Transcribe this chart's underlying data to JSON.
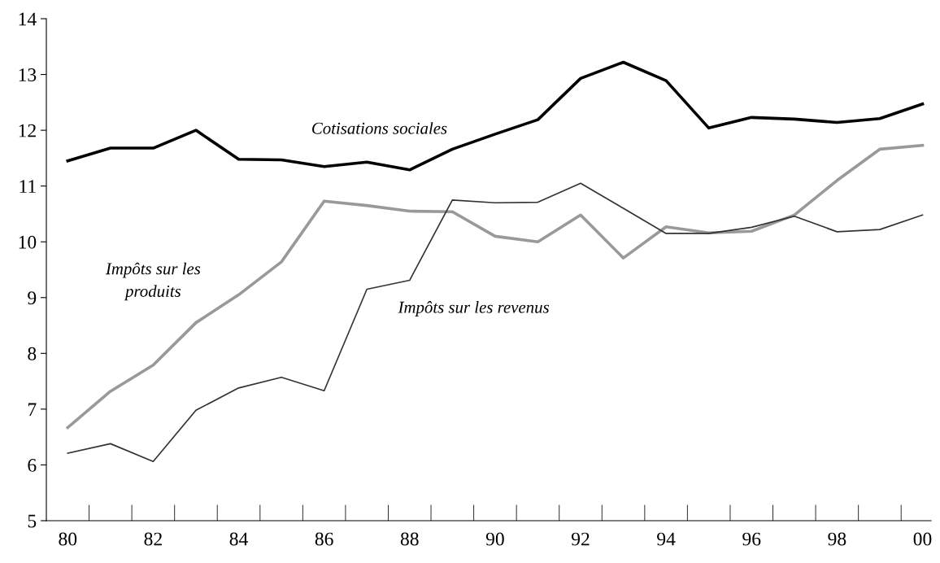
{
  "chart_data": {
    "type": "line",
    "categories": [
      "80",
      null,
      "82",
      null,
      "84",
      null,
      "86",
      null,
      "88",
      null,
      "90",
      null,
      "92",
      null,
      "94",
      null,
      "96",
      null,
      "98",
      null,
      "00"
    ],
    "series": [
      {
        "name": "Cotisations sociales",
        "color": "#000000",
        "values": [
          11.45,
          11.68,
          11.68,
          12.0,
          11.48,
          11.47,
          11.35,
          11.43,
          11.29,
          11.66,
          11.93,
          12.19,
          12.93,
          13.22,
          12.89,
          12.04,
          12.23,
          12.2,
          12.14,
          12.21,
          12.47
        ]
      },
      {
        "name": "Impôts sur les\nproduits",
        "color": "#999999",
        "values": [
          6.67,
          7.32,
          7.79,
          8.55,
          9.05,
          9.64,
          10.73,
          10.65,
          10.55,
          10.54,
          10.1,
          10.0,
          10.48,
          9.71,
          10.27,
          10.16,
          10.19,
          10.48,
          11.1,
          11.66,
          11.73
        ]
      },
      {
        "name": "Impôts sur les revenus",
        "color": "#333333",
        "values": [
          6.21,
          6.38,
          6.06,
          6.98,
          7.38,
          7.57,
          7.33,
          9.15,
          9.31,
          10.75,
          10.7,
          10.71,
          11.05,
          10.6,
          10.15,
          10.15,
          10.26,
          10.46,
          10.18,
          10.22,
          10.48
        ]
      }
    ],
    "ylim": [
      5,
      14
    ],
    "yticks": [
      5,
      6,
      7,
      8,
      9,
      10,
      11,
      12,
      13,
      14
    ],
    "grid": false,
    "legend": false,
    "marker": "none",
    "line_style": "solid"
  }
}
